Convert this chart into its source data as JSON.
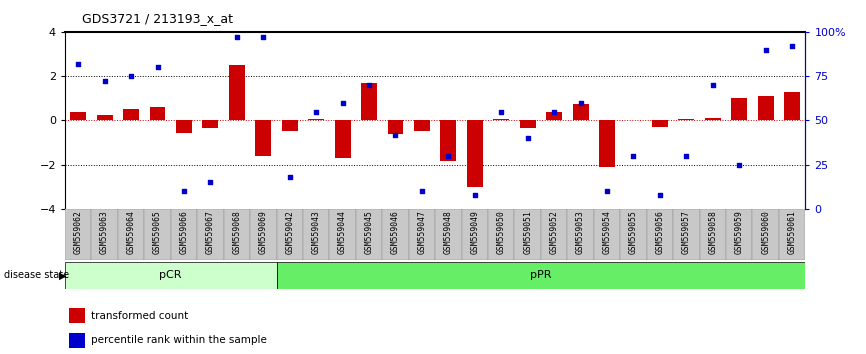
{
  "title": "GDS3721 / 213193_x_at",
  "samples": [
    "GSM559062",
    "GSM559063",
    "GSM559064",
    "GSM559065",
    "GSM559066",
    "GSM559067",
    "GSM559068",
    "GSM559069",
    "GSM559042",
    "GSM559043",
    "GSM559044",
    "GSM559045",
    "GSM559046",
    "GSM559047",
    "GSM559048",
    "GSM559049",
    "GSM559050",
    "GSM559051",
    "GSM559052",
    "GSM559053",
    "GSM559054",
    "GSM559055",
    "GSM559056",
    "GSM559057",
    "GSM559058",
    "GSM559059",
    "GSM559060",
    "GSM559061"
  ],
  "bar_values": [
    0.4,
    0.25,
    0.5,
    0.6,
    -0.55,
    -0.35,
    2.5,
    -1.6,
    -0.5,
    0.05,
    -1.7,
    1.7,
    -0.6,
    -0.5,
    -1.85,
    -3.0,
    0.05,
    -0.35,
    0.4,
    0.75,
    -2.1,
    0.0,
    -0.3,
    0.05,
    0.1,
    1.0,
    1.1,
    1.3
  ],
  "dot_values": [
    82,
    72,
    75,
    80,
    10,
    15,
    97,
    97,
    18,
    55,
    60,
    70,
    42,
    10,
    30,
    8,
    55,
    40,
    55,
    60,
    10,
    30,
    8,
    30,
    70,
    25,
    90,
    92
  ],
  "pCR_count": 8,
  "pPR_count": 20,
  "bar_color": "#cc0000",
  "dot_color": "#0000cc",
  "pCR_color": "#ccffcc",
  "pPR_color": "#66ee66",
  "ylim": [
    -4,
    4
  ],
  "y2lim": [
    0,
    100
  ],
  "yticks": [
    -4,
    -2,
    0,
    2,
    4
  ],
  "y2ticks": [
    0,
    25,
    50,
    75,
    100
  ],
  "y2labels": [
    "0",
    "25",
    "50",
    "75",
    "100%"
  ],
  "dotted_hlines": [
    2,
    -2
  ],
  "background_color": "#ffffff"
}
